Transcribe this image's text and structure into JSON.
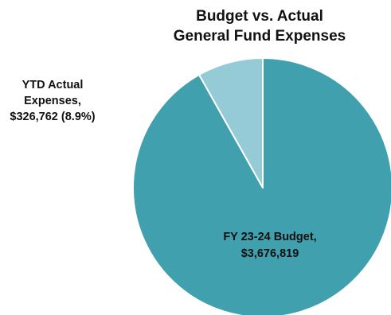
{
  "chart_data": {
    "type": "pie",
    "title": [
      "Budget  vs. Actual",
      "General Fund Expenses"
    ],
    "slices": [
      {
        "name": "FY 23-24 Budget",
        "value": 3676819,
        "label_lines": [
          "FY 23-24 Budget,",
          "$3,676,819"
        ],
        "color": "#41a0ae"
      },
      {
        "name": "YTD Actual Expenses",
        "value": 326762,
        "percent": 8.9,
        "label_lines": [
          "YTD Actual",
          "Expenses,",
          "$326,762  (8.9%)"
        ],
        "color": "#95cbd6"
      }
    ],
    "slice_border_color": "#ffffff"
  }
}
